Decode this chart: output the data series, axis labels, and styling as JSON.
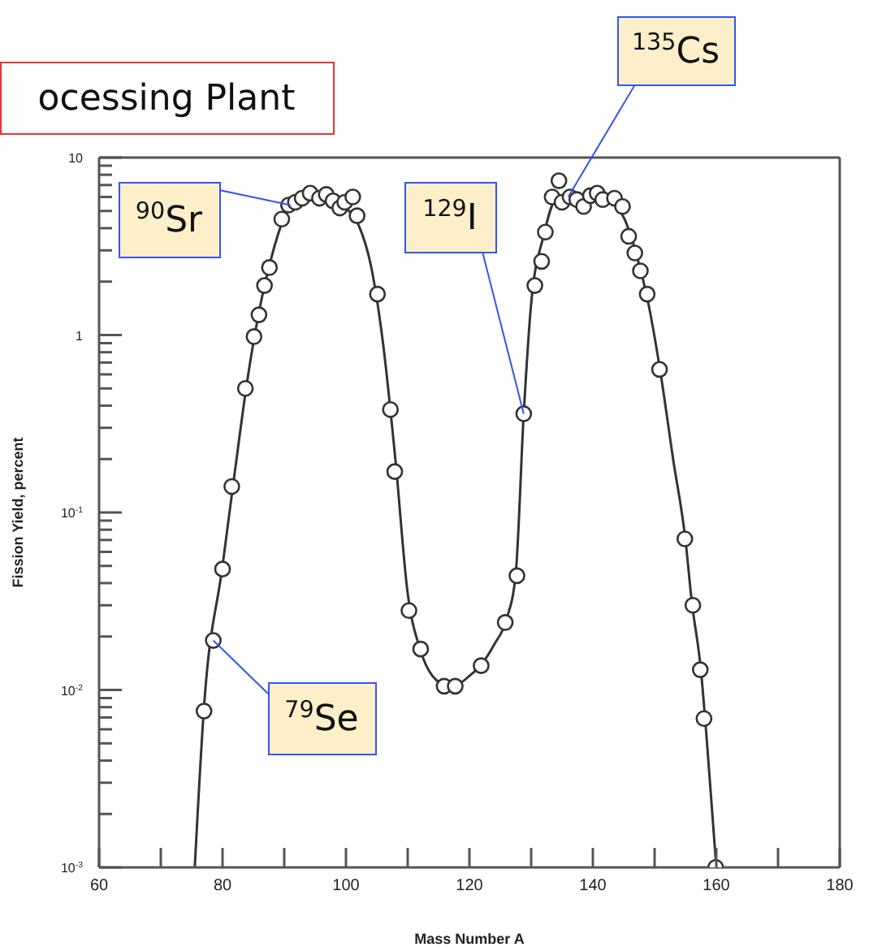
{
  "chart_data": {
    "type": "scatter",
    "xlabel": "Mass Number A",
    "ylabel": "Fission Yield, percent",
    "log": "y",
    "xlim": [
      60,
      180
    ],
    "xticks": [
      60,
      {
        "value": 70,
        "label": null
      },
      80,
      {
        "value": 90,
        "label": null
      },
      100,
      {
        "value": 110,
        "label": null
      },
      120,
      {
        "value": 130,
        "label": null
      },
      140,
      {
        "value": 150,
        "label": null
      },
      160,
      {
        "value": 170,
        "label": null
      },
      180
    ],
    "ylim": [
      0.001,
      10
    ],
    "yticks": [
      {
        "value": 0.001,
        "label": "10$^{-3}$"
      },
      {
        "value": 0.002,
        "label": null
      },
      {
        "value": 0.003,
        "label": null
      },
      {
        "value": 0.004,
        "label": null
      },
      {
        "value": 0.005,
        "label": null
      },
      {
        "value": 0.006,
        "label": null
      },
      {
        "value": 0.007,
        "label": null
      },
      {
        "value": 0.008,
        "label": null
      },
      {
        "value": 0.009,
        "label": null
      },
      {
        "value": 0.01,
        "label": "10$^{-2}$"
      },
      {
        "value": 0.02,
        "label": null
      },
      {
        "value": 0.03,
        "label": null
      },
      {
        "value": 0.04,
        "label": null
      },
      {
        "value": 0.05,
        "label": null
      },
      {
        "value": 0.06,
        "label": null
      },
      {
        "value": 0.07,
        "label": null
      },
      {
        "value": 0.08,
        "label": null
      },
      {
        "value": 0.09,
        "label": null
      },
      {
        "value": 0.1,
        "label": "10$^{-1}$"
      },
      {
        "value": 0.2,
        "label": null
      },
      {
        "value": 0.3,
        "label": null
      },
      {
        "value": 0.4,
        "label": null
      },
      {
        "value": 0.5,
        "label": null
      },
      {
        "value": 0.6,
        "label": null
      },
      {
        "value": 0.7,
        "label": null
      },
      {
        "value": 0.8,
        "label": null
      },
      {
        "value": 0.9,
        "label": null
      },
      1,
      {
        "value": 2,
        "label": null
      },
      {
        "value": 3,
        "label": null
      },
      {
        "value": 4,
        "label": null
      },
      {
        "value": 5,
        "label": null
      },
      {
        "value": 6,
        "label": null
      },
      {
        "value": 7,
        "label": null
      },
      {
        "value": 8,
        "label": null
      },
      {
        "value": 9,
        "label": null
      },
      10
    ],
    "series": [
      {
        "type": "line",
        "color": "#333333",
        "marker": "none",
        "line_style": "solid",
        "x": [
          75.5,
          77,
          80,
          82,
          84,
          86,
          88,
          90,
          92,
          95,
          98,
          100,
          102,
          104,
          106,
          108,
          110,
          112,
          114,
          116,
          118,
          120,
          122,
          124,
          126,
          127.5,
          128.8,
          130,
          132,
          134,
          137,
          140,
          143,
          145,
          147,
          149,
          151,
          153,
          155,
          156,
          157.5,
          158.5,
          160
        ],
        "values": [
          0.001,
          0.008,
          0.05,
          0.17,
          0.55,
          1.4,
          2.8,
          4.6,
          5.7,
          6.1,
          5.8,
          5.2,
          4.2,
          2.5,
          0.9,
          0.2,
          0.035,
          0.017,
          0.012,
          0.0108,
          0.0108,
          0.012,
          0.014,
          0.018,
          0.025,
          0.045,
          0.36,
          1.5,
          3.6,
          5.8,
          6.1,
          6.0,
          5.6,
          4.6,
          2.9,
          1.5,
          0.6,
          0.2,
          0.07,
          0.032,
          0.013,
          0.005,
          0.001
        ]
      },
      {
        "type": "scatter",
        "color": "#333333",
        "marker": "circle",
        "x": [
          77,
          78.5,
          80,
          81.5,
          83.7,
          85.1,
          85.9,
          86.8,
          87.6,
          89.6,
          90.7,
          91.8,
          92.9,
          94.2,
          95.7,
          96.8,
          97.9,
          99,
          99.8,
          101.1,
          101.8,
          105.1,
          107.2,
          107.9,
          110.2,
          112.1,
          115.9,
          117.7,
          121.9,
          125.8,
          127.7,
          128.8,
          130.6,
          131.7,
          132.3,
          133.4,
          134.5,
          135,
          136.3,
          137.4,
          138.5,
          139.6,
          140.7,
          141.6,
          143.5,
          144.8,
          145.8,
          146.8,
          147.7,
          148.8,
          150.8,
          154.9,
          156.2,
          157.4,
          158,
          159.9
        ],
        "values": [
          0.0076,
          0.019,
          0.048,
          0.14,
          0.5,
          0.98,
          1.3,
          1.9,
          2.4,
          4.5,
          5.4,
          5.6,
          5.9,
          6.3,
          5.9,
          6.2,
          5.7,
          5.2,
          5.6,
          6.0,
          4.7,
          1.7,
          0.38,
          0.17,
          0.028,
          0.017,
          0.0105,
          0.0105,
          0.0137,
          0.024,
          0.044,
          0.36,
          1.9,
          2.6,
          3.8,
          6.0,
          7.4,
          5.6,
          6.0,
          5.8,
          5.3,
          6.1,
          6.3,
          5.8,
          5.9,
          5.3,
          3.6,
          2.9,
          2.3,
          1.7,
          0.64,
          0.071,
          0.03,
          0.013,
          0.0069,
          0.001
        ]
      }
    ],
    "annotations": [
      "ocessing Plant",
      {
        "text": "$^{90}$Sr",
        "x": 91,
        "y": 5.4
      },
      {
        "text": "$^{129}$I",
        "x": 128.8,
        "y": 0.36
      },
      {
        "text": "$^{135}$Cs",
        "x": 136,
        "y": 6.0
      },
      {
        "text": "$^{79}$Se",
        "x": 78.5,
        "y": 0.019
      }
    ]
  }
}
